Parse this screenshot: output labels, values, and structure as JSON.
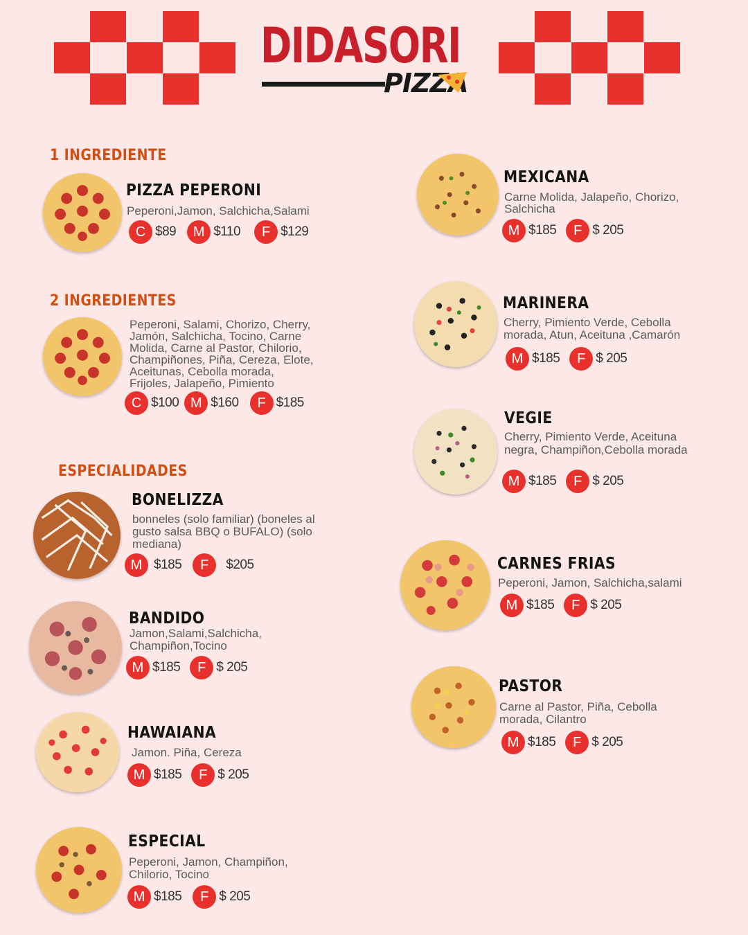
{
  "brand": {
    "name": "DIDASORI",
    "sub": "PIZZA"
  },
  "sections": {
    "uno": "1 INGREDIENTE",
    "dos": "2 INGREDIENTES",
    "especialidades": "ESPECIALIDADES"
  },
  "colors": {
    "accent": "#e8302c",
    "section": "#d24f14",
    "background": "#fde8e8"
  },
  "items": {
    "peperoni": {
      "name": "PIZZA PEPERONI",
      "desc": "Peperoni,Jamon, Salchicha,Salami",
      "prices": [
        {
          "size": "C",
          "price": "$89"
        },
        {
          "size": "M",
          "price": "$110"
        },
        {
          "size": "F",
          "price": "$129"
        }
      ]
    },
    "dos": {
      "desc": "Peperoni, Salami, Chorizo, Cherry, Jamón, Salchicha, Tocino, Carne Molida, Carne al Pastor, Chilorio, Champiñones, Piña, Cereza, Elote, Aceitunas, Cebolla morada, Frijoles, Jalapeño, Pimiento",
      "prices": [
        {
          "size": "C",
          "price": "$100"
        },
        {
          "size": "M",
          "price": "$160"
        },
        {
          "size": "F",
          "price": "$185"
        }
      ]
    },
    "bonelizza": {
      "name": "BONELIZZA",
      "desc": "bonneles (solo familiar) (boneles al gusto salsa BBQ o BUFALO) (solo mediana)",
      "prices": [
        {
          "size": "M",
          "price": "$185"
        },
        {
          "size": "F",
          "price": "$205"
        }
      ]
    },
    "bandido": {
      "name": "BANDIDO",
      "desc": "Jamon,Salami,Salchicha, Champiñon,Tocino",
      "prices": [
        {
          "size": "M",
          "price": "$185"
        },
        {
          "size": "F",
          "price": "$ 205"
        }
      ]
    },
    "hawaiana": {
      "name": "HAWAIANA",
      "desc": "Jamon. Piña, Cereza",
      "prices": [
        {
          "size": "M",
          "price": "$185"
        },
        {
          "size": "F",
          "price": "$ 205"
        }
      ]
    },
    "especial": {
      "name": "ESPECIAL",
      "desc": "Peperoni, Jamon, Champiñon, Chilorio, Tocino",
      "prices": [
        {
          "size": "M",
          "price": "$185"
        },
        {
          "size": "F",
          "price": "$ 205"
        }
      ]
    },
    "mexicana": {
      "name": "MEXICANA",
      "desc": "Carne Molida, Jalapeño, Chorizo, Salchicha",
      "prices": [
        {
          "size": "M",
          "price": "$185"
        },
        {
          "size": "F",
          "price": "$ 205"
        }
      ]
    },
    "marinera": {
      "name": "MARINERA",
      "desc": "Cherry, Pimiento Verde, Cebolla morada, Atun, Aceituna ,Camarón",
      "prices": [
        {
          "size": "M",
          "price": "$185"
        },
        {
          "size": "F",
          "price": "$ 205"
        }
      ]
    },
    "vegie": {
      "name": "VEGIE",
      "desc": "Cherry, Pimiento Verde, Aceituna negra, Champiñon,Cebolla morada",
      "prices": [
        {
          "size": "M",
          "price": "$185"
        },
        {
          "size": "F",
          "price": "$ 205"
        }
      ]
    },
    "carnes": {
      "name": "CARNES FRIAS",
      "desc": "Peperoni, Jamon, Salchicha,salami",
      "prices": [
        {
          "size": "M",
          "price": "$185"
        },
        {
          "size": "F",
          "price": "$ 205"
        }
      ]
    },
    "pastor": {
      "name": "PASTOR",
      "desc": "Carne al Pastor, Piña, Cebolla morada, Cilantro",
      "prices": [
        {
          "size": "M",
          "price": "$185"
        },
        {
          "size": "F",
          "price": "$ 205"
        }
      ]
    }
  }
}
